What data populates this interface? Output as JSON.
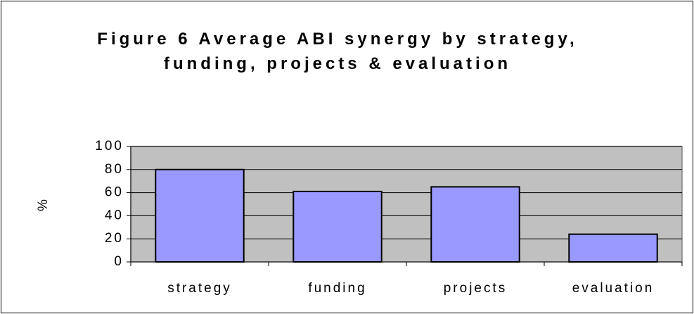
{
  "chart_data": {
    "type": "bar",
    "title": "Figure 6 Average ABI synergy by strategy, funding, projects & evaluation",
    "y_label": "%",
    "categories": [
      "strategy",
      "funding",
      "projects",
      "evaluation"
    ],
    "values": [
      80,
      61,
      65,
      24
    ],
    "color": "#9999ff",
    "ylim": [
      0,
      100
    ],
    "yticks": [
      0,
      20,
      40,
      60,
      80,
      100
    ],
    "grid": true
  }
}
